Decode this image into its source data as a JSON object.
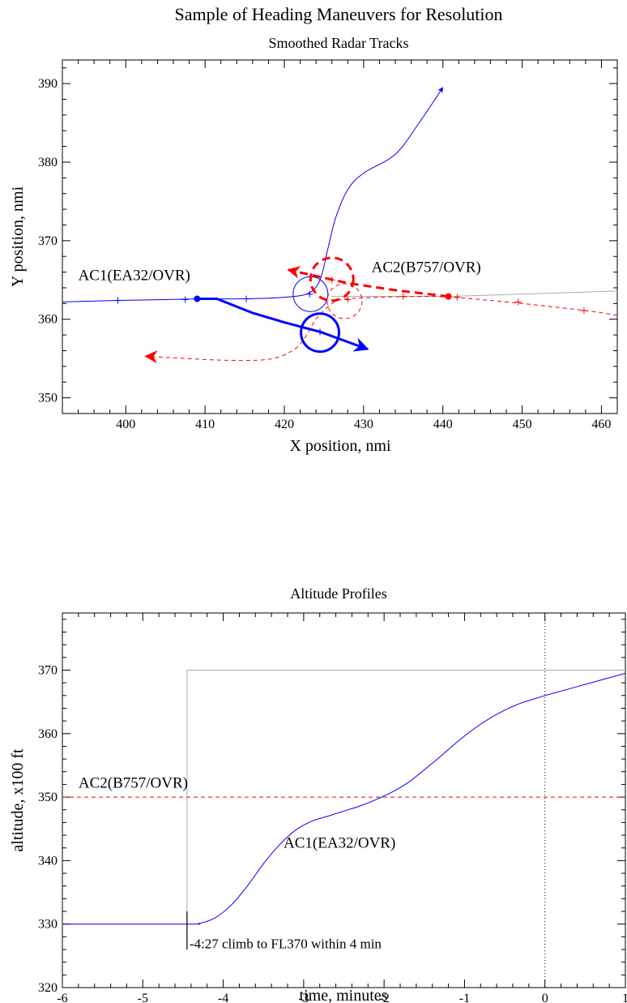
{
  "chart_data": [
    {
      "type": "line",
      "title": "Sample of Heading Maneuvers for Resolution",
      "subtitle": "Smoothed Radar Tracks",
      "xlabel": "X position, nmi",
      "ylabel": "Y position, nmi",
      "xlim": [
        392,
        462
      ],
      "ylim": [
        348,
        393
      ],
      "xticks": [
        400,
        410,
        420,
        430,
        440,
        450,
        460
      ],
      "yticks": [
        350,
        360,
        370,
        380,
        390
      ],
      "grid": false,
      "annotations": [
        {
          "text": "AC1(EA32/OVR)",
          "x": 394,
          "y": 365
        },
        {
          "text": "AC2(B757/OVR)",
          "x": 431,
          "y": 366
        }
      ],
      "series": [
        {
          "name": "AC1(EA32/OVR)",
          "style": "solid-thin",
          "color": "#0000ff",
          "x": [
            392,
            399,
            405,
            410,
            415,
            420,
            423,
            424.5,
            425.5,
            426.5,
            428,
            430,
            434,
            437,
            440
          ],
          "y": [
            362.2,
            362.4,
            362.5,
            362.6,
            362.6,
            362.8,
            363.3,
            365,
            369,
            373,
            376.5,
            378.6,
            381,
            385,
            389.5
          ]
        },
        {
          "name": "AC1 heading maneuver",
          "style": "solid-thick",
          "color": "#0000ff",
          "x": [
            409,
            411.5,
            416,
            420,
            424.5,
            430.5
          ],
          "y": [
            362.6,
            362.6,
            360.8,
            359.6,
            358.4,
            356.2
          ]
        },
        {
          "name": "AC2(B757/OVR)",
          "style": "dashed-thin",
          "color": "#ff0000",
          "x": [
            462,
            458,
            449,
            441,
            436,
            428,
            426,
            424,
            422.5,
            421,
            418,
            412,
            402.5
          ],
          "y": [
            360.5,
            361.1,
            362.1,
            362.8,
            362.9,
            362.6,
            362,
            360,
            357.5,
            356,
            354.9,
            354.8,
            355.3
          ]
        },
        {
          "name": "AC2 heading maneuver",
          "style": "dashed-thick",
          "color": "#ff0000",
          "x": [
            440.7,
            434,
            428,
            420.5
          ],
          "y": [
            362.9,
            363.7,
            364.6,
            366.3
          ]
        },
        {
          "name": "AC2 intent",
          "style": "solid-thin",
          "color": "#aaaaaa",
          "x": [
            426,
            440.7,
            462
          ],
          "y": [
            362.9,
            362.9,
            363.6
          ]
        }
      ],
      "circles": [
        {
          "cx": 423.3,
          "cy": 363.2,
          "r": 2.2,
          "color": "#0000ff",
          "style": "solid-thin"
        },
        {
          "cx": 424.5,
          "cy": 358.3,
          "r": 2.4,
          "color": "#0000ff",
          "style": "solid-thick"
        },
        {
          "cx": 426,
          "cy": 365.1,
          "r": 2.7,
          "color": "#ff0000",
          "style": "dashed-thick"
        },
        {
          "cx": 427.6,
          "cy": 362.3,
          "r": 2.2,
          "color": "#ff0000",
          "style": "dashed-thin"
        }
      ],
      "points": [
        {
          "x": 409,
          "y": 362.6,
          "color": "#0000ff"
        },
        {
          "x": 440.7,
          "y": 362.9,
          "color": "#ff0000"
        }
      ],
      "track_marks": [
        {
          "color": "#0000ff",
          "x": [
            399,
            407.5,
            415.2,
            423.2,
            424.5
          ],
          "y": [
            362.4,
            362.5,
            362.6,
            363.2,
            358.4
          ]
        },
        {
          "color": "#ff0000",
          "x": [
            457.8,
            449.5,
            441.8,
            435,
            428,
            426
          ],
          "y": [
            361.1,
            362.2,
            362.8,
            362.9,
            362.5,
            365
          ]
        }
      ]
    },
    {
      "type": "line",
      "title": "Altitude Profiles",
      "xlabel": "time, minutes",
      "ylabel": "altitude, x100 ft",
      "xlim": [
        -6,
        1
      ],
      "ylim": [
        320,
        379
      ],
      "xticks": [
        -6,
        -5,
        -4,
        -3,
        -2,
        -1,
        0,
        1
      ],
      "yticks": [
        320,
        330,
        340,
        350,
        360,
        370
      ],
      "grid": false,
      "vline_dotted_at": 0,
      "annotations": [
        {
          "text": "AC2(B757/OVR)",
          "x": -5.8,
          "y": 351.5
        },
        {
          "text": "AC1(EA32/OVR)",
          "x": -3.25,
          "y": 342
        },
        {
          "text": "-4:27 climb to FL370 within 4 min",
          "x": -4.42,
          "y": 326.2
        }
      ],
      "series": [
        {
          "name": "AC1(EA32/OVR)",
          "style": "solid-thin",
          "color": "#0000ff",
          "x": [
            -6,
            -4.45,
            -4.3,
            -4.1,
            -3.9,
            -3.7,
            -3.5,
            -3.3,
            -3.1,
            -2.9,
            -2.7,
            -2.5,
            -2.3,
            -2.1,
            -1.9,
            -1.7,
            -1.5,
            -1.3,
            -1.1,
            -0.9,
            -0.7,
            -0.5,
            -0.3,
            -0.1,
            0,
            0.2,
            0.4,
            0.6,
            0.8,
            1.0
          ],
          "y": [
            330,
            330,
            330.1,
            331,
            333,
            336,
            339.5,
            342.5,
            344.8,
            346.2,
            347,
            347.8,
            348.6,
            349.6,
            350.8,
            352.3,
            354.3,
            356.4,
            358.6,
            360.6,
            362.3,
            363.7,
            364.8,
            365.6,
            366,
            366.7,
            367.4,
            368.1,
            368.8,
            369.5
          ]
        },
        {
          "name": "AC2(B757/OVR)",
          "style": "dashed-thin",
          "color": "#ff0000",
          "x": [
            -6,
            1
          ],
          "y": [
            350,
            350
          ]
        },
        {
          "name": "clearance",
          "style": "solid-thin",
          "color": "#aaaaaa",
          "x": [
            -4.45,
            -4.45,
            1
          ],
          "y": [
            330,
            370,
            370
          ]
        }
      ],
      "marker": {
        "x": -4.45,
        "y0": 326,
        "y1": 332
      }
    }
  ]
}
